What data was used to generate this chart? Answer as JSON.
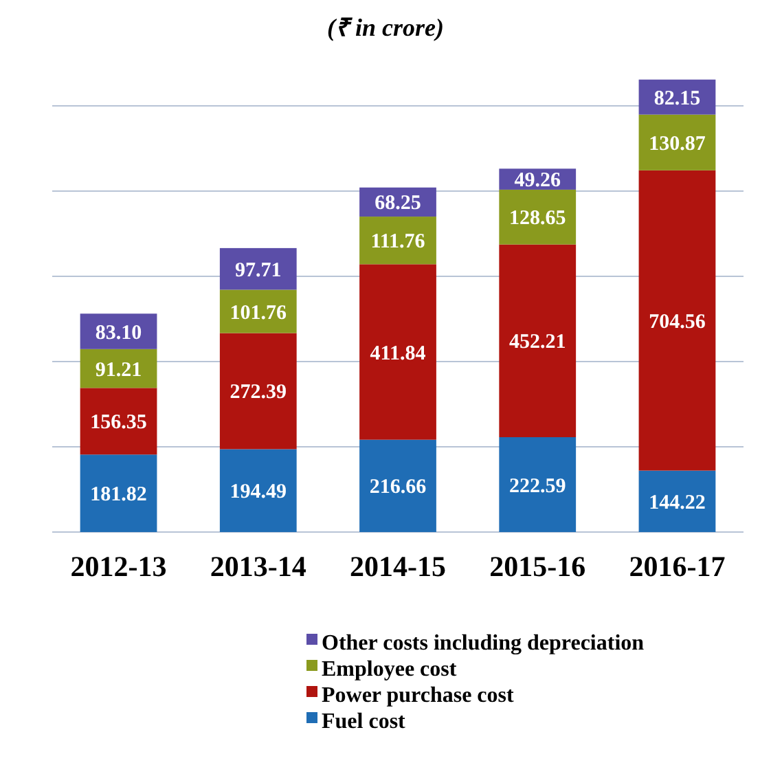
{
  "chart_data": {
    "type": "bar",
    "title": "(₹ in crore)",
    "stacked": true,
    "grid": "y",
    "tick_labels": "x",
    "legend": "bottom",
    "categories": [
      "2012-13",
      "2013-14",
      "2014-15",
      "2015-16",
      "2016-17"
    ],
    "yticks": [
      {
        "value": 0,
        "label": null
      },
      {
        "value": 200,
        "label": null
      },
      {
        "value": 400,
        "label": null
      },
      {
        "value": 600,
        "label": null
      },
      {
        "value": 800,
        "label": null
      },
      {
        "value": 1000,
        "label": null
      }
    ],
    "series": [
      {
        "name": "Fuel cost",
        "color": "#1f6db5",
        "values": [
          181.82,
          194.49,
          216.66,
          222.59,
          144.22
        ],
        "value_labels": [
          "181.82",
          "194.49",
          "216.66",
          "222.59",
          "144.22"
        ]
      },
      {
        "name": "Power purchase cost",
        "color": "#b0140f",
        "values": [
          156.35,
          272.39,
          411.84,
          452.21,
          704.56
        ],
        "value_labels": [
          "156.35",
          "272.39",
          "411.84",
          "452.21",
          "704.56"
        ]
      },
      {
        "name": "Employee cost",
        "color": "#8a9a1e",
        "values": [
          91.21,
          101.76,
          111.76,
          128.65,
          130.87
        ],
        "value_labels": [
          "91.21",
          "101.76",
          "111.76",
          "128.65",
          "130.87"
        ]
      },
      {
        "name": "Other costs including depreciation",
        "color": "#5b4ea8",
        "values": [
          83.1,
          97.71,
          68.25,
          49.26,
          82.15
        ],
        "value_labels": [
          "83.10",
          "97.71",
          "68.25",
          "49.26",
          "82.15"
        ]
      }
    ]
  }
}
